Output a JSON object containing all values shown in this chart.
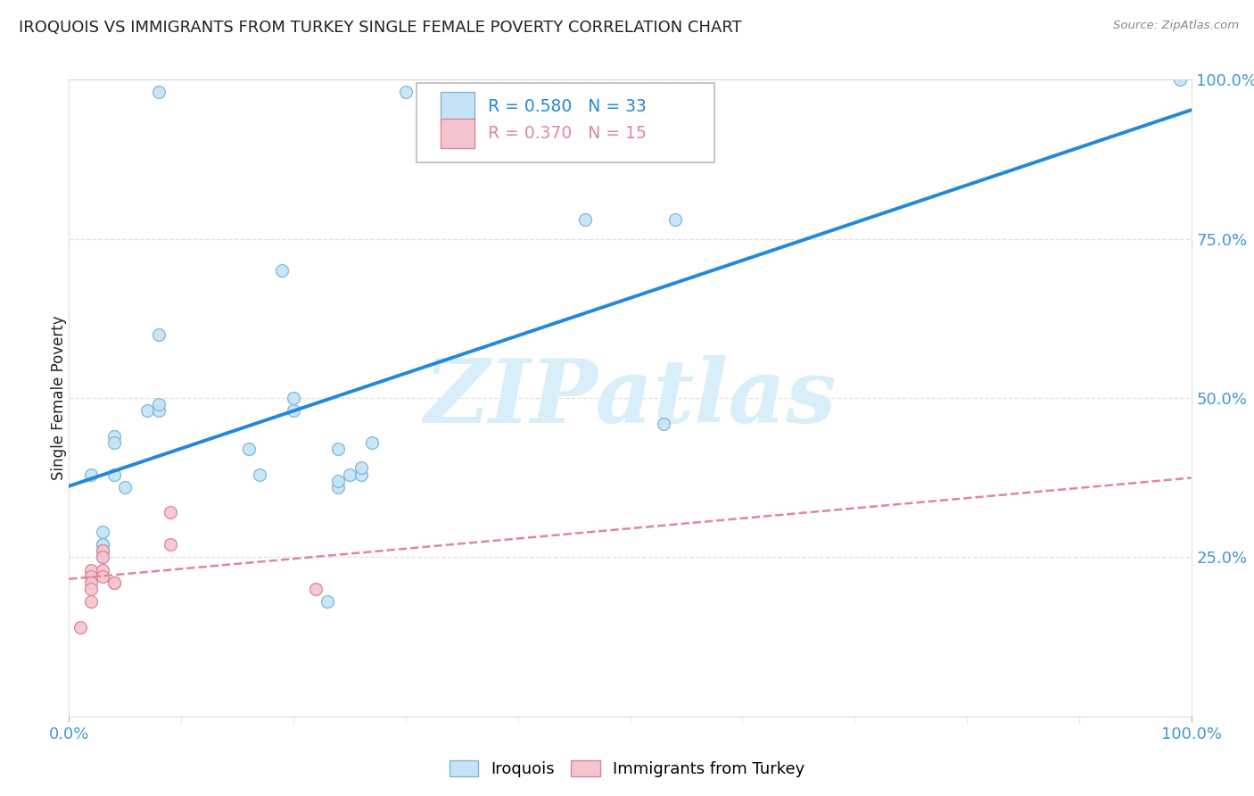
{
  "title": "IROQUOIS VS IMMIGRANTS FROM TURKEY SINGLE FEMALE POVERTY CORRELATION CHART",
  "source": "Source: ZipAtlas.com",
  "ylabel": "Single Female Poverty",
  "legend_label1": "Iroquois",
  "legend_label2": "Immigrants from Turkey",
  "r1": 0.58,
  "n1": 33,
  "r2": 0.37,
  "n2": 15,
  "watermark": "ZIPatlas",
  "blue_scatter_x": [
    0.02,
    0.08,
    0.19,
    0.08,
    0.2,
    0.07,
    0.04,
    0.04,
    0.04,
    0.05,
    0.08,
    0.08,
    0.03,
    0.03,
    0.03,
    0.03,
    0.03,
    0.16,
    0.2,
    0.24,
    0.25,
    0.26,
    0.26,
    0.27,
    0.3,
    0.46,
    0.53,
    0.54,
    0.17,
    0.24,
    0.24,
    0.23,
    0.99
  ],
  "blue_scatter_y": [
    0.38,
    0.98,
    0.7,
    0.6,
    0.5,
    0.48,
    0.44,
    0.43,
    0.38,
    0.36,
    0.48,
    0.49,
    0.29,
    0.27,
    0.27,
    0.26,
    0.25,
    0.42,
    0.48,
    0.42,
    0.38,
    0.38,
    0.39,
    0.43,
    0.98,
    0.78,
    0.46,
    0.78,
    0.38,
    0.36,
    0.37,
    0.18,
    1.0
  ],
  "pink_scatter_x": [
    0.01,
    0.02,
    0.02,
    0.02,
    0.02,
    0.02,
    0.03,
    0.03,
    0.03,
    0.03,
    0.04,
    0.04,
    0.09,
    0.22,
    0.09
  ],
  "pink_scatter_y": [
    0.14,
    0.23,
    0.22,
    0.21,
    0.2,
    0.18,
    0.26,
    0.25,
    0.23,
    0.22,
    0.21,
    0.21,
    0.32,
    0.2,
    0.27
  ],
  "blue_color": "#c5e3f5",
  "blue_edge_color": "#7ab8d8",
  "pink_color": "#f5c5cf",
  "pink_edge_color": "#d8849a",
  "trendline_blue_color": "#2288dd",
  "trendline_pink_color": "#dd8899",
  "grid_color": "#e0e0e0",
  "axis_label_color": "#4499cc",
  "title_color": "#222222",
  "watermark_color": "#d8eef8",
  "background_color": "#ffffff",
  "marker_size": 100
}
